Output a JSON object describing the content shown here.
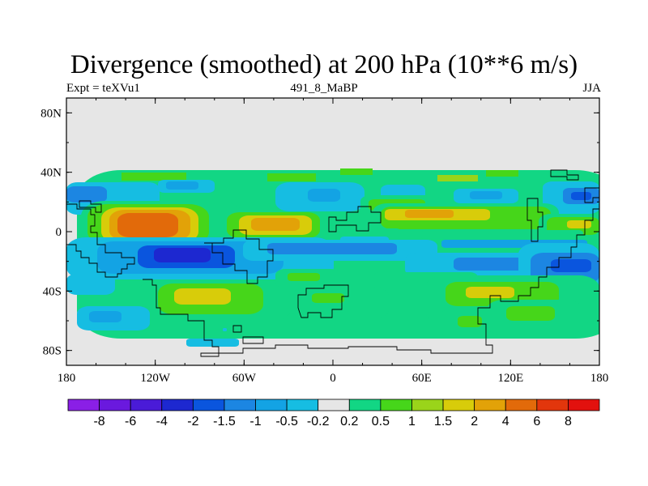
{
  "chart_data": {
    "type": "heatmap",
    "title": "Divergence (smoothed) at 200 hPa (10**6 m/s)",
    "subtitle_left": "Expt = teXVu1",
    "subtitle_center": "491_8_MaBP",
    "subtitle_right": "JJA",
    "x_ticks": [
      "180",
      "120W",
      "60W",
      "0",
      "60E",
      "120E",
      "180"
    ],
    "y_ticks": [
      "80N",
      "40N",
      "0",
      "40S",
      "80S"
    ],
    "xlim": [
      -180,
      180
    ],
    "ylim": [
      -90,
      90
    ],
    "colorbar": {
      "labels": [
        "-8",
        "-6",
        "-4",
        "-2",
        "-1.5",
        "-1",
        "-0.5",
        "-0.2",
        "0.2",
        "0.5",
        "1",
        "1.5",
        "2",
        "4",
        "6",
        "8"
      ],
      "colors": [
        "#8a1fe6",
        "#6a19de",
        "#4a1bd8",
        "#1d28d0",
        "#0a55de",
        "#1c86e2",
        "#13a3e4",
        "#16bde2",
        "#e6e6e6",
        "#12d684",
        "#46d61a",
        "#9ad41a",
        "#d8cc0a",
        "#e2a208",
        "#e26a0a",
        "#e2360c",
        "#e2110e"
      ]
    }
  }
}
